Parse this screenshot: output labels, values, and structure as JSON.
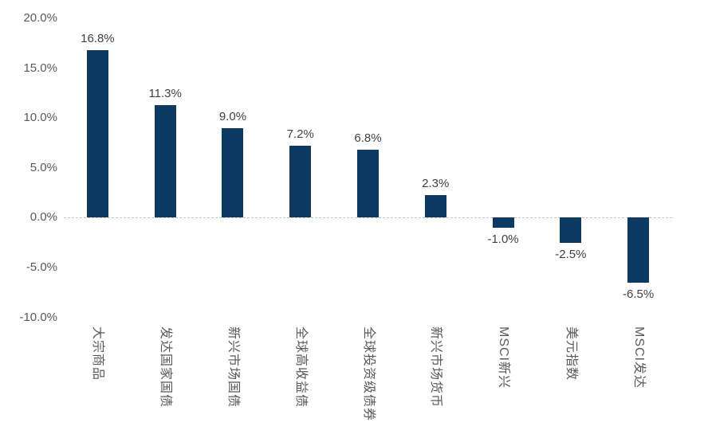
{
  "chart_data": {
    "type": "bar",
    "categories": [
      "大宗商品",
      "发达国家国债",
      "新兴市场国债",
      "全球高收益债",
      "全球投资级债券",
      "新兴市场货币",
      "MSCI新兴",
      "美元指数",
      "MSCI发达"
    ],
    "values": [
      16.8,
      11.3,
      9.0,
      7.2,
      6.8,
      2.3,
      -1.0,
      -2.5,
      -6.5
    ],
    "value_labels": [
      "16.8%",
      "11.3%",
      "9.0%",
      "7.2%",
      "6.8%",
      "2.3%",
      "-1.0%",
      "-2.5%",
      "-6.5%"
    ],
    "title": "",
    "xlabel": "",
    "ylabel": "",
    "ylim": [
      -10,
      20
    ],
    "y_ticks": [
      20,
      15,
      10,
      5,
      0,
      -5,
      -10
    ],
    "y_tick_labels": [
      "20.0%",
      "15.0%",
      "10.0%",
      "5.0%",
      "0.0%",
      "-5.0%",
      "-10.0%"
    ],
    "grid": "zero-line-only",
    "legend": "none",
    "bar_color": "#0d3a62",
    "tick_color": "#595959",
    "value_label_color": "#404040",
    "zero_line_color": "#c6c6c6"
  }
}
